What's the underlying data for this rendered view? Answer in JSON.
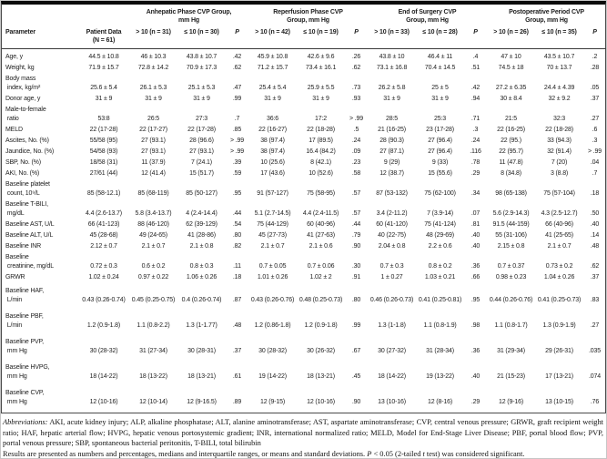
{
  "table": {
    "header": {
      "parameter": "Parameter",
      "patient_data": "Patient Data\n(N = 61)",
      "p_label": "P",
      "groups": [
        {
          "title": "Anhepatic Phase CVP Group,\nmm Hg",
          "gt": "> 10 (n = 31)",
          "le": "≤ 10 (n = 30)"
        },
        {
          "title": "Reperfusion Phase CVP\nGroup, mm Hg",
          "gt": "> 10 (n = 42)",
          "le": "≤ 10 (n = 19)"
        },
        {
          "title": "End of Surgery CVP\nGroup, mm Hg",
          "gt": "> 10 (n = 33)",
          "le": "≤ 10 (n = 28)"
        },
        {
          "title": "Postoperative Period CVP\nGroup, mm Hg",
          "gt": "> 10 (n = 26)",
          "le": "≤ 10 (n = 35)"
        }
      ]
    },
    "rows": [
      {
        "label": "Age, y",
        "values": [
          "44.5 ± 10.8",
          "46 ± 10.3",
          "43.8 ± 10.7",
          ".42",
          "45.9 ± 10.8",
          "42.6 ± 9.6",
          ".26",
          "43.8 ± 10",
          "46.4 ± 11",
          ".4",
          "47 ± 10",
          "43.5 ± 10.7",
          ".2"
        ]
      },
      {
        "label": "Weight, kg",
        "values": [
          "71.9 ± 15.7",
          "72.8 ± 14.2",
          "70.9 ± 17.3",
          ".62",
          "71.2 ± 15.7",
          "73.4 ± 16.1",
          ".62",
          "73.1 ± 16.8",
          "70.4 ± 14.5",
          ".51",
          "74.5 ± 18",
          "70 ± 13.7",
          ".28"
        ]
      },
      {
        "label": "Body mass\n index, kg/m²",
        "values": [
          "25.6 ± 5.4",
          "26.1 ± 5.3",
          "25.1 ± 5.3",
          ".47",
          "25.4 ± 5.4",
          "25.9 ± 5.5",
          ".73",
          "26.2 ± 5.8",
          "25 ± 5",
          ".42",
          "27.2 ± 6.35",
          "24.4 ± 4.39",
          ".05"
        ]
      },
      {
        "label": "Donor age, y",
        "values": [
          "31 ± 9",
          "31 ± 9",
          "31 ± 9",
          ".99",
          "31 ± 9",
          "31 ± 9",
          ".93",
          "31 ± 9",
          "31 ± 9",
          ".94",
          "30 ± 8.4",
          "32 ± 9.2",
          ".37"
        ]
      },
      {
        "label": "Male-to-female\n ratio",
        "values": [
          "53:8",
          "26:5",
          "27:3",
          ".7",
          "36:6",
          "17:2",
          "> .99",
          "28:5",
          "25:3",
          ".71",
          "21:5",
          "32:3",
          ".27"
        ]
      },
      {
        "label": "MELD",
        "values": [
          "22 (17-28)",
          "22 (17-27)",
          "22 (17-28)",
          ".85",
          "22 (16-27)",
          "22 (18-28)",
          ".5",
          "21 (16-25)",
          "23 (17-28)",
          ".3",
          "22 (16-25)",
          "22 (18-28)",
          ".6"
        ]
      },
      {
        "label": "Ascites, No. (%)",
        "values": [
          "55/58 (95)",
          "27 (93.1)",
          "28 (96.6)",
          "> .99",
          "38 (97.4)",
          "17 (89.5)",
          ".24",
          "28 (90.3)",
          "27 (96.4)",
          ".24",
          "22 (95.)",
          "33 (94.3)",
          ".3"
        ]
      },
      {
        "label": "Jaundice, No. (%)",
        "values": [
          "54/58 (93)",
          "27 (93.1)",
          "27 (93.1)",
          "> .99",
          "38 (97.4)",
          "16.4 (84.2)",
          ".09",
          "27 (87.1)",
          "27 (96.4)",
          ".116",
          "22 (95.7)",
          "32 (91.4)",
          "> .99"
        ]
      },
      {
        "label": "SBP, No. (%)",
        "values": [
          "18/58 (31)",
          "11 (37.9)",
          "7 (24.1)",
          ".39",
          "10 (25.6)",
          "8 (42.1)",
          ".23",
          "9 (29)",
          "9 (33)",
          ".78",
          "11 (47.8)",
          "7 (20)",
          ".04"
        ]
      },
      {
        "label": "AKI, No. (%)",
        "values": [
          "27/61 (44)",
          "12 (41.4)",
          "15 (51.7)",
          ".59",
          "17 (43.6)",
          "10 (52.6)",
          ".58",
          "12 (38.7)",
          "15 (55.6)",
          ".29",
          "8 (34.8)",
          "3 (8.8)",
          ".7"
        ]
      },
      {
        "label": "Baseline platelet\n count, 10⁹/L",
        "values": [
          "85 (58-12.1)",
          "85 (68-119)",
          "85 (50-127)",
          ".95",
          "91 (57-127)",
          "75 (58-95)",
          ".57",
          "87 (53-132)",
          "75 (62-100)",
          ".34",
          "98 (65-138)",
          "75 (57-104)",
          ".18"
        ]
      },
      {
        "label": "Baseline T-BILI,\n mg/dL",
        "values": [
          "4.4 (2.6-13.7)",
          "5.8 (3.4-13.7)",
          "4 (2.4-14.4)",
          ".44",
          "5.1 (2.7-14.5)",
          "4.4 (2.4-11.5)",
          ".57",
          "3.4 (2-11.2)",
          "7 (3.9-14)",
          ".07",
          "5.6 (2.9-14.3)",
          "4.3 (2.5-12.7)",
          ".50"
        ]
      },
      {
        "label": "Baseline AST, U/L",
        "values": [
          "66 (41-123)",
          "88 (46-120)",
          "62 (39-129)",
          ".54",
          "75 (44-129)",
          "60 (40-96)",
          ".44",
          "60 (41-120)",
          "75 (41-124)",
          ".81",
          "91.5 (44-159)",
          "66 (40-96)",
          ".40"
        ]
      },
      {
        "label": "Baseline ALT, U/L",
        "values": [
          "45 (28-68)",
          "49 (24-65)",
          "41 (28-86)",
          ".80",
          "45 (27-73)",
          "41 (27-63)",
          ".79",
          "40 (22-75)",
          "48 (29-69)",
          ".40",
          "55 (31-106)",
          "41 (25-65)",
          ".14"
        ]
      },
      {
        "label": "Baseline INR",
        "values": [
          "2.12 ± 0.7",
          "2.1 ± 0.7",
          "2.1 ± 0.8",
          ".82",
          "2.1 ± 0.7",
          "2.1 ± 0.6",
          ".90",
          "2.04 ± 0.8",
          "2.2 ± 0.6",
          ".40",
          "2.15 ± 0.8",
          "2.1 ± 0.7",
          ".48"
        ]
      },
      {
        "label": "Baseline\n creatinine, mg/dL",
        "values": [
          "0.72 ± 0.3",
          "0.6 ± 0.2",
          "0.8 ± 0.3",
          ".11",
          "0.7 ± 0.05",
          "0.7 ± 0.06",
          ".30",
          "0.7 ± 0.3",
          "0.8 ± 0.2",
          ".36",
          "0.7 ± 0.37",
          "0.73 ± 0.2",
          ".62"
        ]
      },
      {
        "label": "GRWR",
        "values": [
          "1.02 ± 0.24",
          "0.97 ± 0.22",
          "1.06 ± 0.26",
          ".18",
          "1.01 ± 0.26",
          "1.02 ± 2",
          ".91",
          "1 ± 0.27",
          "1.03 ± 0.21",
          ".66",
          "0.98 ± 0.23",
          "1.04 ± 0.26",
          ".37"
        ]
      },
      {
        "label": "Baseline HAF,\n L/min",
        "values": [
          "0.43 (0.26-0.74)",
          "0.45 (0.25-0.75)",
          "0.4 (0.26-0.74)",
          ".87",
          "0.43 (0.26-0.76)",
          "0.48 (0.25-0.73)",
          ".80",
          "0.46 (0.26-0.73)",
          "0.41 (0.25-0.81)",
          ".95",
          "0.44 (0.26-0.76)",
          "0.41 (0.25-0.73)",
          ".83"
        ]
      },
      {
        "label": "Baseline PBF,\n L/min",
        "values": [
          "1.2 (0.9-1.8)",
          "1.1 (0.8-2.2)",
          "1.3 (1-1.77)",
          ".48",
          "1.2 (0.86-1.8)",
          "1.2 (0.9-1.8)",
          ".99",
          "1.3 (1-1.8)",
          "1.1 (0.8-1.9)",
          ".98",
          "1.1 (0.8-1.7)",
          "1.3 (0.9-1.9)",
          ".27"
        ]
      },
      {
        "label": "Baseline PVP,\n mm Hg",
        "values": [
          "30 (28-32)",
          "31 (27-34)",
          "30 (28-31)",
          ".37",
          "30 (28-32)",
          "30 (26-32)",
          ".67",
          "30 (27-32)",
          "31 (28-34)",
          ".36",
          "31 (29-34)",
          "29 (26-31)",
          ".035"
        ]
      },
      {
        "label": "Baseline HVPG,\n mm Hg",
        "values": [
          "18 (14-22)",
          "18 (13-22)",
          "18 (13-21)",
          ".61",
          "19 (14-22)",
          "18 (13-21)",
          ".45",
          "18 (14-22)",
          "19 (13-22)",
          ".40",
          "21 (15-23)",
          "17 (13-21)",
          ".074"
        ]
      },
      {
        "label": "Baseline CVP,\n mm Hg",
        "values": [
          "12 (10-16)",
          "12 (10-14)",
          "12 (9-16.5)",
          ".89",
          "12 (9-15)",
          "12 (10-16)",
          ".90",
          "13 (10-16)",
          "12 (8-16)",
          ".29",
          "12 (9-16)",
          "13 (10-15)",
          ".76"
        ]
      }
    ]
  },
  "footnotes": {
    "abbrev_label": "Abbreviations:",
    "abbrev_text": " AKI, acute kidney injury; ALP, alkaline phosphatase; ALT, alanine aminotransferase; AST, aspartate aminotransferase; CVP, central venous pressure; GRWR, graft recipient weight ratio; HAF, hepatic arterial flow; HVPG, hepatic venous portosystemic gradient; INR, international normalized ratio; MELD, Model for End-Stage Liver Disease; PBF, portal blood flow; PVP, portal venous pressure; SBP, spontaneous bacterial peritonitis, T-BILI, total bilirubin",
    "results_pre": "Results are presented as numbers and percentages, medians and interquartile ranges, or means and standard deviations. ",
    "p_italic": "P",
    "results_mid": " < 0.05 (2-tailed ",
    "t_italic": "t",
    "results_post": " test) was considered significant."
  }
}
